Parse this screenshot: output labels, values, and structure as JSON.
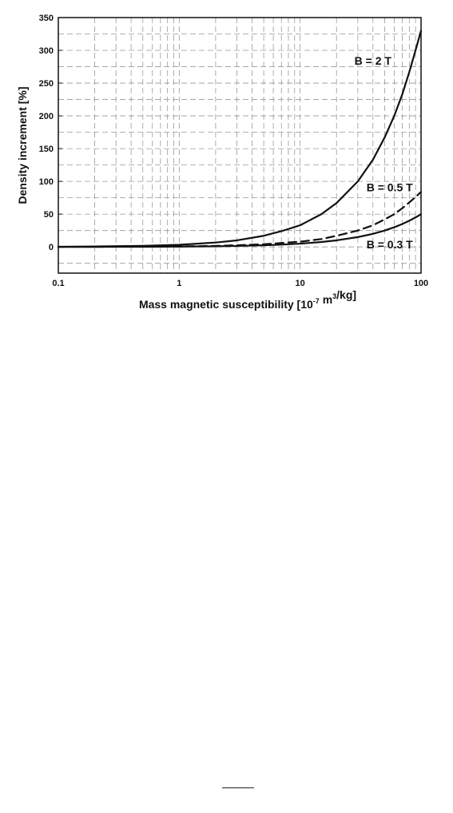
{
  "chart_data": {
    "type": "line",
    "title": "",
    "xlabel": "Mass magnetic susceptibility [10⁻⁷ m³/kg]",
    "ylabel": "Density increment [%]",
    "xscale": "log",
    "xlim": [
      0.1,
      100
    ],
    "ylim": [
      -40,
      350
    ],
    "grid": true,
    "grid_style": "dashed",
    "x_ticks": [
      0.1,
      1,
      10,
      100
    ],
    "x_tick_labels": [
      "0.1",
      "1",
      "10",
      "100"
    ],
    "y_ticks": [
      0,
      50,
      100,
      150,
      200,
      250,
      300,
      350
    ],
    "y_tick_labels": [
      "0",
      "50",
      "100",
      "150",
      "200",
      "250",
      "300",
      "350"
    ],
    "x": [
      0.1,
      0.2,
      0.5,
      1,
      2,
      3,
      5,
      7,
      10,
      15,
      20,
      30,
      40,
      50,
      60,
      70,
      80,
      90,
      100
    ],
    "series": [
      {
        "name": "B = 2 T",
        "line": "solid",
        "values": [
          0.3,
          0.7,
          1.6,
          3.3,
          6.7,
          10,
          17,
          24,
          33,
          50,
          67,
          100,
          133,
          167,
          200,
          233,
          267,
          300,
          330
        ]
      },
      {
        "name": "B = 0.5 T",
        "line": "dashed",
        "values": [
          0.1,
          0.2,
          0.4,
          0.8,
          1.6,
          2.5,
          4,
          6,
          8,
          12,
          17,
          25,
          33,
          42,
          50,
          59,
          68,
          76,
          84
        ]
      },
      {
        "name": "B = 0.3 T",
        "line": "solid",
        "values": [
          0.05,
          0.1,
          0.25,
          0.5,
          1,
          1.5,
          2.5,
          3.5,
          5,
          7.5,
          10,
          15,
          20,
          25,
          30,
          35,
          40,
          45,
          50
        ]
      }
    ],
    "annotations": [
      {
        "text": "B = 2 T",
        "x": 40,
        "y": 278
      },
      {
        "text": "B = 0.5 T",
        "x": 55,
        "y": 85
      },
      {
        "text": "B = 0.3 T",
        "x": 55,
        "y": -2
      }
    ]
  }
}
